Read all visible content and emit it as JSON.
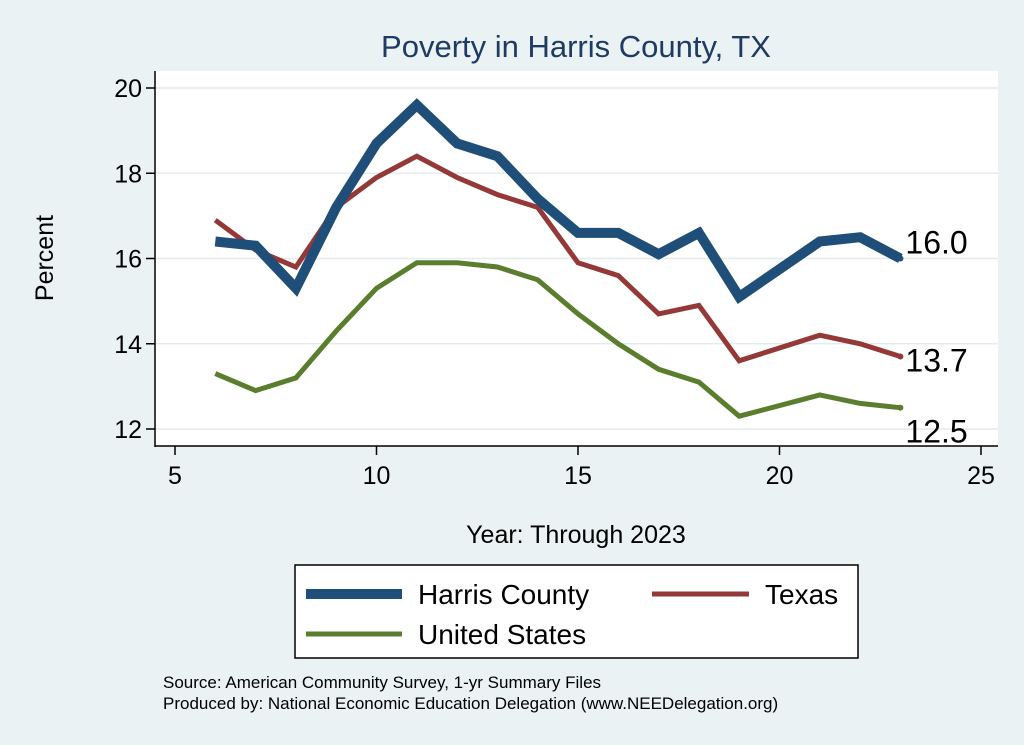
{
  "chart_data": {
    "type": "line",
    "title": "Poverty in Harris County, TX",
    "xlabel": "Year: Through 2023",
    "ylabel": "Percent",
    "xlim": [
      5,
      25
    ],
    "ylim": [
      12,
      20
    ],
    "xticks": [
      "5",
      "10",
      "15",
      "20",
      "25"
    ],
    "yticks": [
      "12",
      "14",
      "16",
      "18",
      "20"
    ],
    "grid": "horizontal",
    "legend_position": "bottom",
    "series": [
      {
        "name": "Harris County",
        "color": "#1f4e79",
        "x": [
          6,
          7,
          8,
          9,
          10,
          11,
          12,
          13,
          14,
          15,
          16,
          17,
          18,
          19,
          21,
          22,
          23
        ],
        "values": [
          16.4,
          16.3,
          15.3,
          17.2,
          18.7,
          19.6,
          18.7,
          18.4,
          17.4,
          16.6,
          16.6,
          16.1,
          16.6,
          15.1,
          16.4,
          16.5,
          16.0
        ],
        "end_label": "16.0"
      },
      {
        "name": "Texas",
        "color": "#943838",
        "x": [
          6,
          7,
          8,
          9,
          10,
          11,
          12,
          13,
          14,
          15,
          16,
          17,
          18,
          19,
          21,
          22,
          23
        ],
        "values": [
          16.9,
          16.2,
          15.8,
          17.2,
          17.9,
          18.4,
          17.9,
          17.5,
          17.2,
          15.9,
          15.6,
          14.7,
          14.9,
          13.6,
          14.2,
          14.0,
          13.7
        ],
        "end_label": "13.7"
      },
      {
        "name": "United States",
        "color": "#5a7d2e",
        "x": [
          6,
          7,
          8,
          9,
          10,
          11,
          12,
          13,
          14,
          15,
          16,
          17,
          18,
          19,
          21,
          22,
          23
        ],
        "values": [
          13.3,
          12.9,
          13.2,
          14.3,
          15.3,
          15.9,
          15.9,
          15.8,
          15.5,
          14.7,
          14.0,
          13.4,
          13.1,
          12.3,
          12.8,
          12.6,
          12.5
        ],
        "end_label": "12.5"
      }
    ],
    "source_lines": [
      "Source: American Community Survey, 1-yr Summary Files",
      "Produced by: National Economic Education Delegation (www.NEEDelegation.org)"
    ]
  }
}
